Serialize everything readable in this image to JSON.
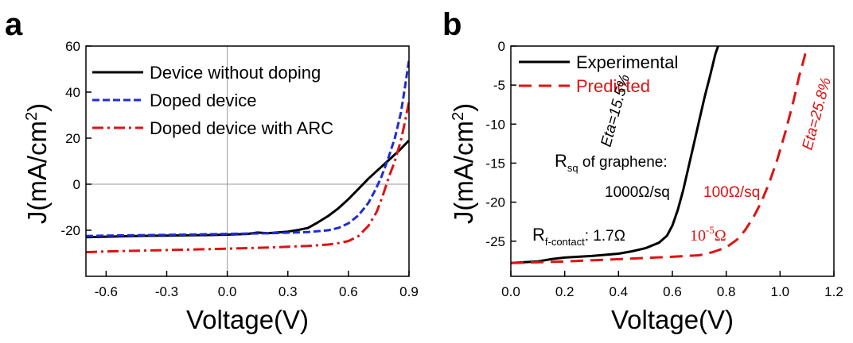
{
  "chart_data": [
    {
      "panel": "a",
      "type": "line",
      "xlabel": "Voltage(V)",
      "ylabel_main": "J(mA/cm",
      "ylabel_sup": "2",
      "ylabel_close": ")",
      "xlim": [
        -0.7,
        0.9
      ],
      "ylim": [
        -40,
        60
      ],
      "xticks": [
        -0.6,
        -0.3,
        0.0,
        0.3,
        0.6,
        0.9
      ],
      "xtick_labels": [
        "-0.6",
        "-0.3",
        "0.0",
        "0.3",
        "0.6",
        "0.9"
      ],
      "yticks": [
        -20,
        0,
        20,
        40,
        60
      ],
      "ytick_labels": [
        "-20",
        "0",
        "20",
        "40",
        "60"
      ],
      "zero_lines": true,
      "legend_position": "top-right",
      "series": [
        {
          "name": "Device without doping",
          "color": "#000000",
          "dash": "solid",
          "x": [
            -0.7,
            -0.6,
            -0.5,
            -0.4,
            -0.3,
            -0.2,
            -0.1,
            0.0,
            0.1,
            0.15,
            0.2,
            0.3,
            0.35,
            0.4,
            0.45,
            0.5,
            0.55,
            0.6,
            0.65,
            0.7,
            0.75,
            0.8,
            0.85,
            0.9
          ],
          "y": [
            -23,
            -22.8,
            -22.6,
            -22.4,
            -22.3,
            -22.2,
            -22.1,
            -21.9,
            -21.6,
            -21.0,
            -21.3,
            -20.6,
            -19.9,
            -19.0,
            -16.5,
            -13.8,
            -10.5,
            -6.5,
            -2.0,
            2.5,
            6.5,
            10.5,
            14.5,
            19
          ]
        },
        {
          "name": "Doped device",
          "color": "#1f2bd6",
          "dash": "blue",
          "x": [
            -0.7,
            -0.6,
            -0.4,
            -0.2,
            0.0,
            0.2,
            0.4,
            0.5,
            0.55,
            0.6,
            0.65,
            0.7,
            0.73,
            0.76,
            0.78,
            0.8,
            0.83,
            0.86,
            0.88,
            0.9
          ],
          "y": [
            -22.5,
            -22.3,
            -22.1,
            -21.9,
            -21.6,
            -21.3,
            -20.8,
            -20.0,
            -19.0,
            -17.0,
            -13.5,
            -8.0,
            -3.0,
            2.5,
            7.0,
            12.0,
            20.0,
            31.0,
            42.0,
            54.0
          ]
        },
        {
          "name": "Doped device with ARC",
          "color": "#e01212",
          "dash": "dashdot",
          "x": [
            -0.7,
            -0.6,
            -0.4,
            -0.2,
            0.0,
            0.2,
            0.4,
            0.5,
            0.55,
            0.6,
            0.65,
            0.7,
            0.74,
            0.77,
            0.8,
            0.83,
            0.86,
            0.88,
            0.9
          ],
          "y": [
            -29.5,
            -29.2,
            -28.8,
            -28.4,
            -28.0,
            -27.5,
            -26.8,
            -26.2,
            -25.6,
            -24.7,
            -22.5,
            -18.0,
            -12.0,
            -5.0,
            3.0,
            10.0,
            19.0,
            27.0,
            36.0
          ]
        }
      ]
    },
    {
      "panel": "b",
      "type": "line",
      "xlabel": "Voltage(V)",
      "ylabel_main": "J(mA/cm",
      "ylabel_sup": "2",
      "ylabel_close": ")",
      "xlim": [
        0.0,
        1.2
      ],
      "ylim": [
        -29.5,
        0
      ],
      "xticks": [
        0.0,
        0.2,
        0.4,
        0.6,
        0.8,
        1.0,
        1.2
      ],
      "xtick_labels": [
        "0.0",
        "0.2",
        "0.4",
        "0.6",
        "0.8",
        "1.0",
        "1.2"
      ],
      "yticks": [
        -25,
        -20,
        -15,
        -10,
        -5,
        0
      ],
      "ytick_labels": [
        "-25",
        "-20",
        "-15",
        "-10",
        "-5",
        "0"
      ],
      "legend_position": "top-left",
      "series": [
        {
          "name": "Experimental",
          "color": "#000000",
          "dash": "solid",
          "x": [
            0.0,
            0.05,
            0.1,
            0.15,
            0.2,
            0.3,
            0.4,
            0.45,
            0.5,
            0.55,
            0.58,
            0.6,
            0.62,
            0.64,
            0.66,
            0.68,
            0.7,
            0.72,
            0.74,
            0.76,
            0.77
          ],
          "y": [
            -27.8,
            -27.7,
            -27.6,
            -27.3,
            -27.1,
            -26.9,
            -26.6,
            -26.3,
            -25.9,
            -25.2,
            -24.3,
            -23.0,
            -21.0,
            -18.5,
            -15.5,
            -12.5,
            -9.5,
            -6.5,
            -3.8,
            -1.0,
            0.0
          ]
        },
        {
          "name": "Predicted",
          "color": "#e01212",
          "dash": "dashed",
          "x": [
            0.0,
            0.2,
            0.4,
            0.6,
            0.7,
            0.75,
            0.8,
            0.84,
            0.87,
            0.9,
            0.93,
            0.96,
            0.99,
            1.02,
            1.05,
            1.07,
            1.09,
            1.1
          ],
          "y": [
            -27.8,
            -27.6,
            -27.3,
            -27.0,
            -26.8,
            -26.4,
            -25.8,
            -24.8,
            -23.6,
            -22.0,
            -20.0,
            -17.5,
            -14.5,
            -11.0,
            -7.0,
            -4.0,
            -1.5,
            0.0
          ]
        }
      ]
    }
  ],
  "panel_a": {
    "letter": "a"
  },
  "panel_b": {
    "letter": "b",
    "eta_exp": "Eta=15.5%",
    "eta_pred": "Eta=25.8%",
    "rsq_label": "R",
    "rsq_sub": "sq",
    "rsq_rest": " of graphene:",
    "rsq_exp": "1000Ω/sq",
    "rsq_pred": "100Ω/sq",
    "rf_label": "R",
    "rf_sub": "f-contact",
    "rf_rest": ": 1.7Ω",
    "rf_pred_base": "10",
    "rf_pred_exp": "-5",
    "rf_pred_unit": "Ω"
  }
}
